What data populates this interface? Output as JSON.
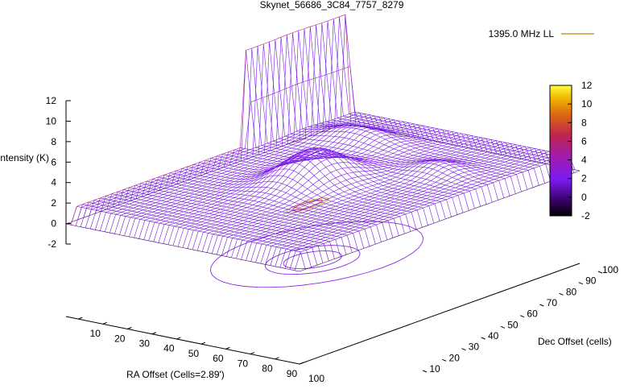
{
  "chart_data": {
    "type": "surface",
    "title": "Skynet_56686_3C84_7757_8279",
    "legend": {
      "position": "top-right",
      "entries": [
        {
          "name": "1395.0 MHz LL",
          "color": "#c49a2b"
        }
      ]
    },
    "xlabel": "RA Offset (Cells=2.89')",
    "ylabel": "Dec Offset (cells)",
    "zlabel": "Intensity (K)",
    "x_ticks": [
      "10",
      "20",
      "30",
      "40",
      "50",
      "60",
      "70",
      "80",
      "90",
      "100"
    ],
    "y_ticks": [
      "10",
      "20",
      "30",
      "40",
      "50",
      "60",
      "70",
      "80",
      "90",
      "100"
    ],
    "z_ticks": [
      "-2",
      "0",
      "2",
      "4",
      "6",
      "8",
      "10",
      "12"
    ],
    "colorbar_ticks": [
      "-2",
      "0",
      "2",
      "4",
      "6",
      "8",
      "10",
      "12"
    ],
    "xlim": [
      5,
      100
    ],
    "ylim": [
      10,
      100
    ],
    "zlim": [
      -2,
      12
    ],
    "grid": false,
    "surface_features": [
      {
        "kind": "base_level",
        "z": 1.8
      },
      {
        "kind": "central_source_peak",
        "x": 50,
        "y": 55,
        "z": 5
      },
      {
        "kind": "edge_spike",
        "x": 5,
        "y": 85,
        "z": 12
      }
    ]
  }
}
